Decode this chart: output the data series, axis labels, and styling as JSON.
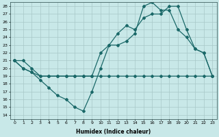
{
  "background_color": "#c8e8e8",
  "plot_bg_color": "#c8e8e8",
  "grid_color": "#a8c8c8",
  "line_color": "#1a6868",
  "xlabel": "Humidex (Indice chaleur)",
  "xlim": [
    -0.5,
    23.5
  ],
  "ylim": [
    13.5,
    28.5
  ],
  "yticks": [
    14,
    15,
    16,
    17,
    18,
    19,
    20,
    21,
    22,
    23,
    24,
    25,
    26,
    27,
    28
  ],
  "xticks": [
    0,
    1,
    2,
    3,
    4,
    5,
    6,
    7,
    8,
    9,
    10,
    11,
    12,
    13,
    14,
    15,
    16,
    17,
    18,
    19,
    20,
    21,
    22,
    23
  ],
  "line1_x": [
    0,
    1,
    2,
    3,
    4,
    5,
    6,
    7,
    8,
    9,
    10,
    11,
    12,
    13,
    14,
    15,
    16,
    17,
    18,
    19,
    20,
    21,
    22,
    23
  ],
  "line1_y": [
    21,
    21,
    20,
    19,
    19,
    19,
    19,
    19,
    19,
    19,
    19,
    19,
    19,
    19,
    19,
    19,
    19,
    19,
    19,
    19,
    19,
    19,
    19,
    19
  ],
  "line2_x": [
    0,
    1,
    2,
    3,
    4,
    5,
    6,
    7,
    8,
    9,
    10,
    11,
    12,
    13,
    14,
    15,
    16,
    17,
    18,
    19,
    20,
    21,
    22,
    23
  ],
  "line2_y": [
    21,
    20,
    19.5,
    19,
    19,
    19,
    19,
    19,
    19,
    19,
    22,
    23,
    23,
    23.5,
    24.5,
    28,
    28.5,
    27.5,
    27.5,
    25,
    24,
    22.5,
    22,
    19
  ],
  "line3_x": [
    0,
    1,
    2,
    3,
    4,
    5,
    6,
    7,
    8,
    9,
    10,
    11,
    12,
    13,
    14,
    15,
    16,
    17,
    18,
    19,
    20,
    21,
    22,
    23
  ],
  "line3_y": [
    21,
    20,
    19.5,
    18.5,
    17.5,
    16.5,
    16,
    15,
    14.5,
    17,
    20,
    23,
    24.5,
    25.5,
    25,
    26.5,
    27,
    27,
    28,
    28,
    25,
    22.5,
    22,
    19
  ]
}
